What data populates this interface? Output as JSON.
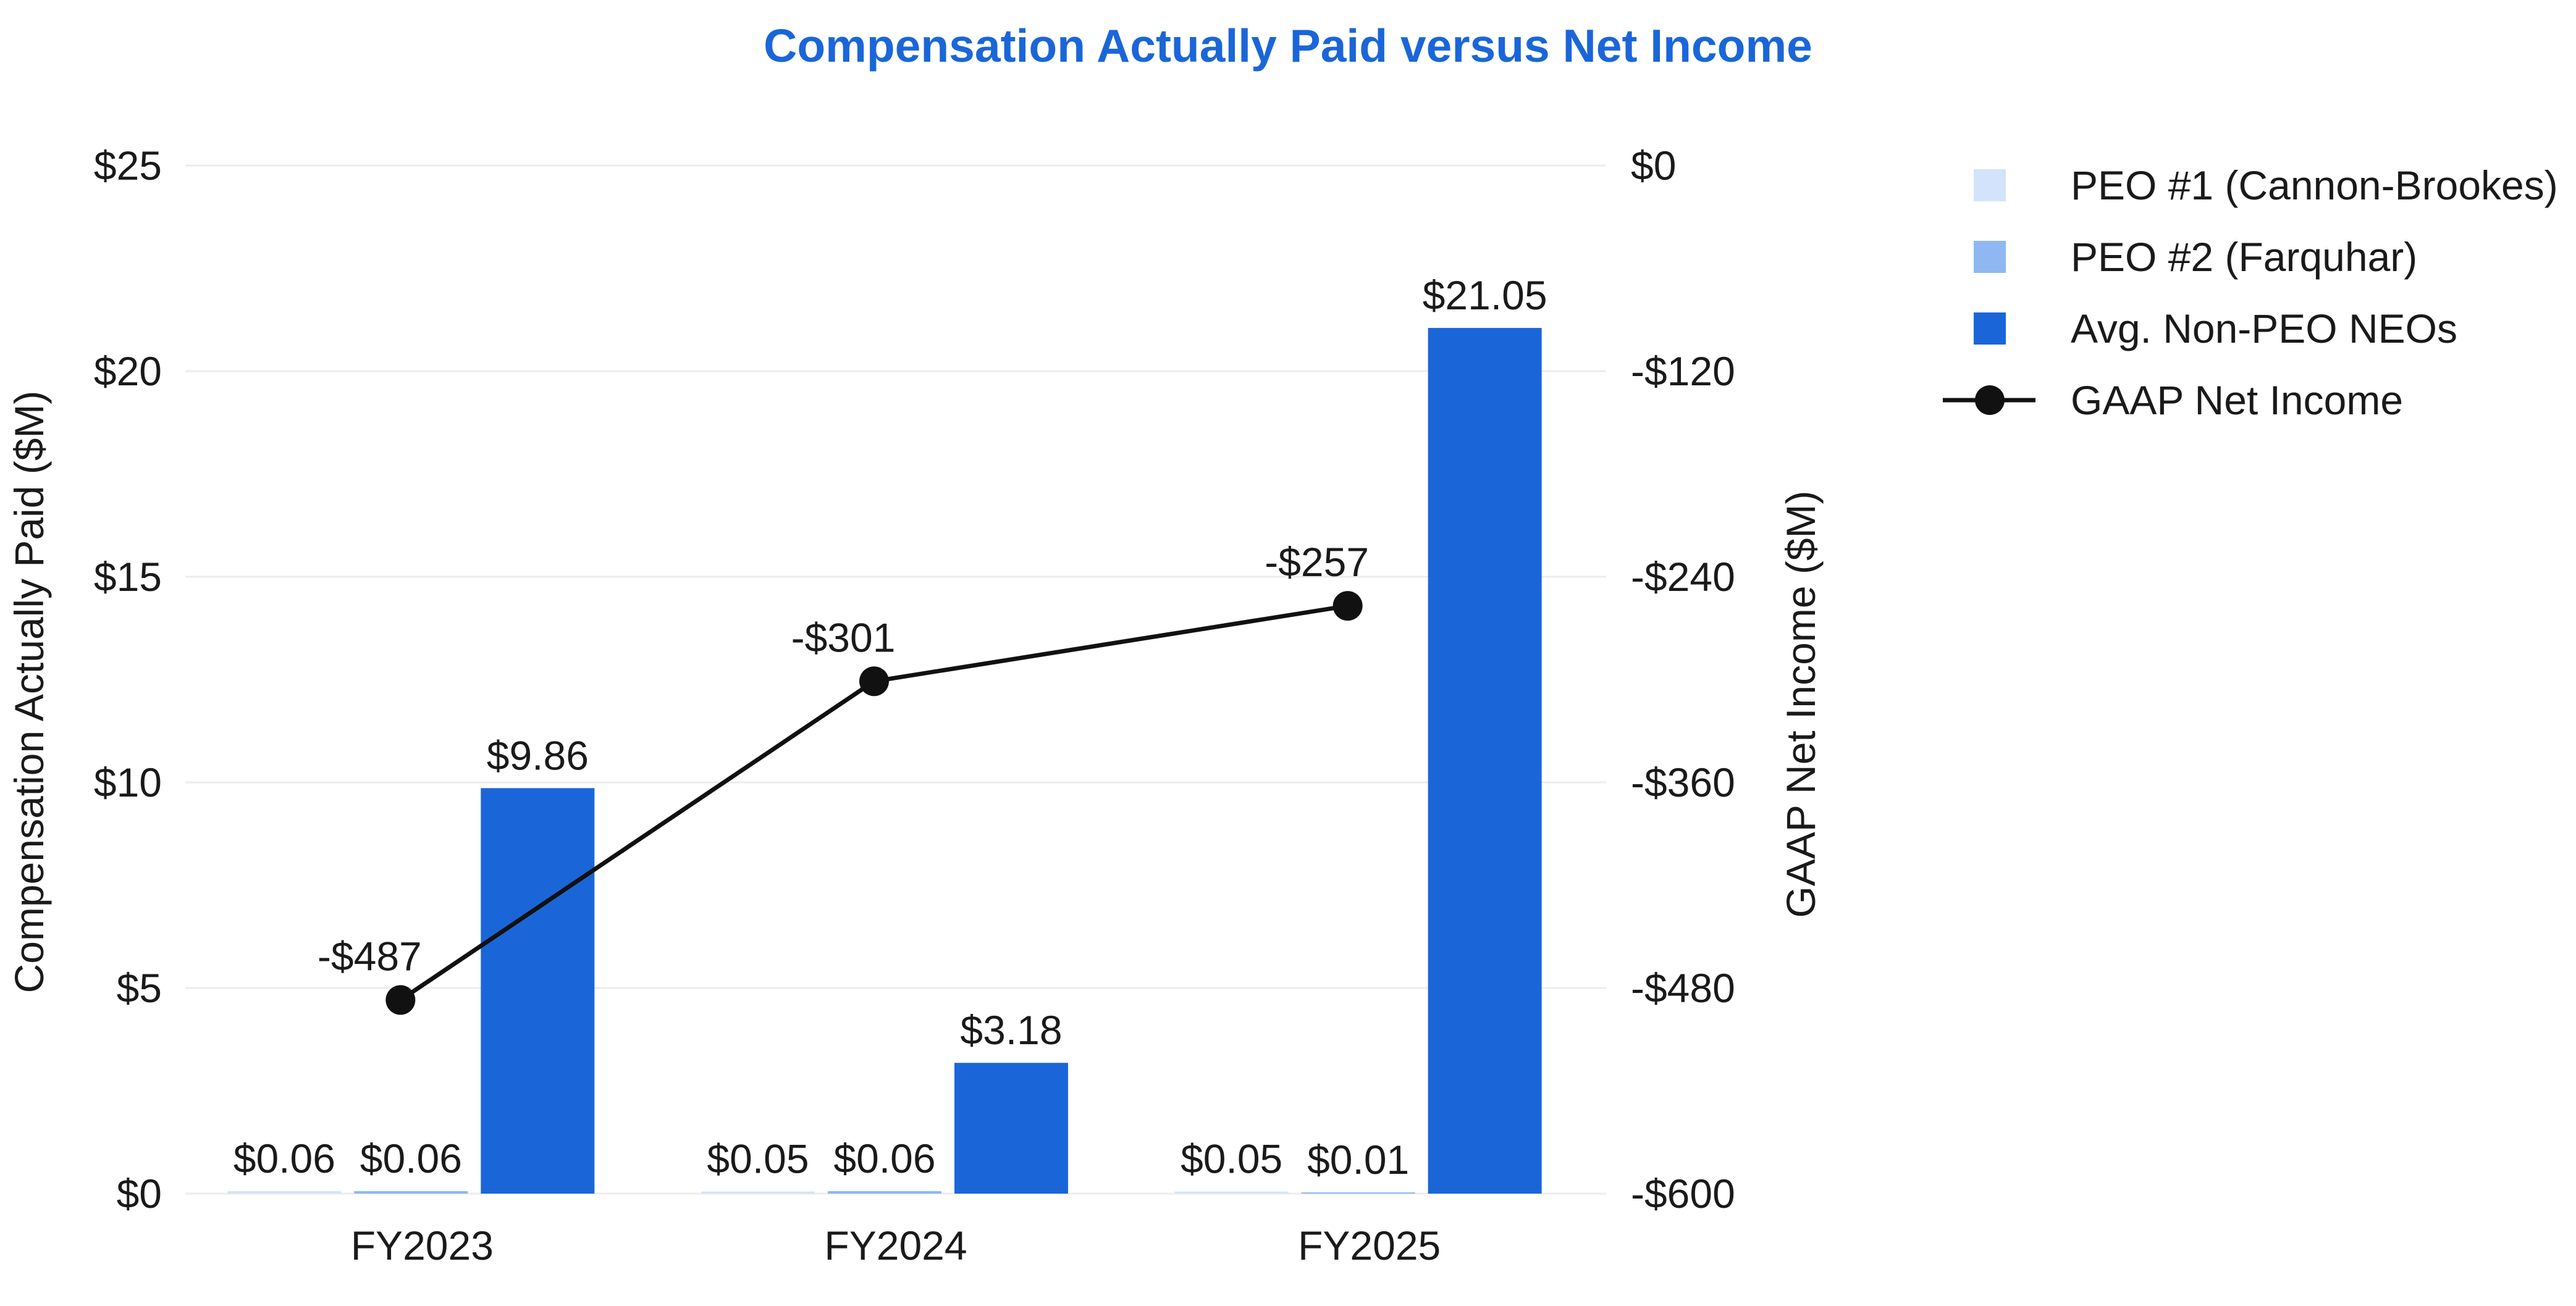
{
  "chart_data": {
    "type": "bar",
    "title": "Compensation Actually Paid versus Net Income",
    "title_color": "#1a66d9",
    "categories": [
      "FY2023",
      "FY2024",
      "FY2025"
    ],
    "ylabel": "Compensation Actually Paid ($M)",
    "y2label": "GAAP Net Income ($M)",
    "ylim": [
      0,
      25
    ],
    "y2lim": [
      -600,
      0
    ],
    "yticks": [
      0,
      5,
      10,
      15,
      20,
      25
    ],
    "yticks_labels": [
      "$0",
      "$5",
      "$10",
      "$15",
      "$20",
      "$25"
    ],
    "y2ticks": [
      -600,
      -480,
      -360,
      -240,
      -120,
      0
    ],
    "y2ticks_labels": [
      "-$600",
      "-$480",
      "-$360",
      "-$240",
      "-$120",
      "$0"
    ],
    "grid": true,
    "legend_position": "top-right",
    "series": [
      {
        "name": "PEO #1 (Cannon-Brookes)",
        "type": "bar",
        "axis": "left",
        "color": "#d3e3fb",
        "values": [
          0.06,
          0.05,
          0.05
        ],
        "labels": [
          "$0.06",
          "$0.05",
          "$0.05"
        ]
      },
      {
        "name": "PEO #2 (Farquhar)",
        "type": "bar",
        "axis": "left",
        "color": "#8fb8f3",
        "values": [
          0.06,
          0.06,
          0.01
        ],
        "labels": [
          "$0.06",
          "$0.06",
          "$0.01"
        ]
      },
      {
        "name": "Avg. Non-PEO NEOs",
        "type": "bar",
        "axis": "left",
        "color": "#1a66d9",
        "values": [
          9.86,
          3.18,
          21.05
        ],
        "labels": [
          "$9.86",
          "$3.18",
          "$21.05"
        ]
      },
      {
        "name": "GAAP Net Income",
        "type": "line",
        "axis": "right",
        "color": "#111111",
        "values": [
          -487,
          -301,
          -257
        ],
        "labels": [
          "-$487",
          "-$301",
          "-$257"
        ]
      }
    ]
  }
}
